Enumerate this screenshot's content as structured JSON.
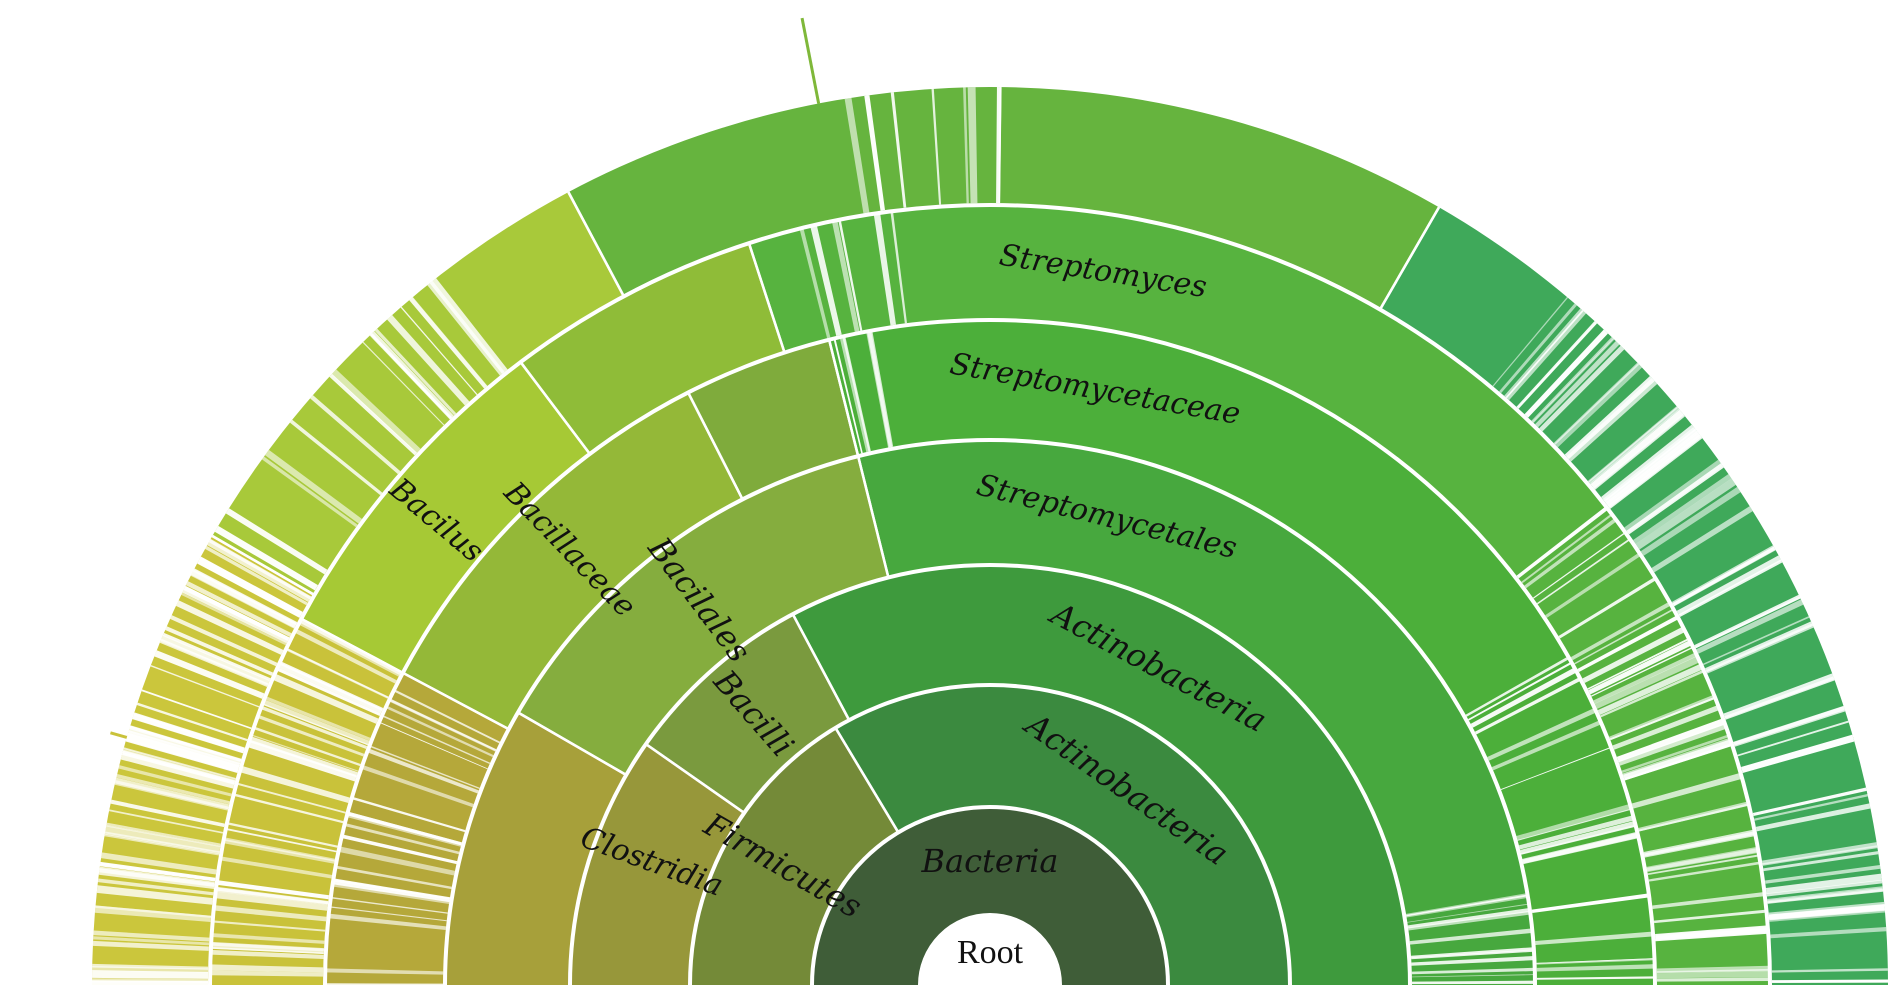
{
  "root": {
    "label": "Root",
    "children": [
      {
        "label": "Bacteria",
        "color": "#3f5d38",
        "children": [
          {
            "label": "Firmicutes",
            "color": "#748a38",
            "children": [
              {
                "label": "Clostridia",
                "color": "#97973a",
                "children": [
                  {
                    "label": "",
                    "color": "#a7a03a",
                    "children": [
                      {
                        "label": "",
                        "color": "#b5a83a",
                        "children": [
                          {
                            "label": "",
                            "color": "#c9c23a",
                            "children": []
                          }
                        ]
                      }
                    ]
                  }
                ]
              },
              {
                "label": "Bacilli",
                "color": "#7a9a3e",
                "children": [
                  {
                    "label": "Bacilales",
                    "color": "#85ad3e",
                    "children": [
                      {
                        "label": "Bacillaceae",
                        "color": "#94b838",
                        "children": [
                          {
                            "label": "Bacilus",
                            "color": "#a6c935",
                            "children": []
                          }
                        ]
                      }
                    ]
                  }
                ]
              }
            ]
          },
          {
            "label": "Actinobacteria",
            "color": "#3b8a3f",
            "children": [
              {
                "label": "Actinobacteria",
                "color": "#3e9a3d",
                "children": [
                  {
                    "label": "Streptomycetales",
                    "color": "#47a83e",
                    "children": [
                      {
                        "label": "Streptomycetaceae",
                        "color": "#4caf3a",
                        "children": [
                          {
                            "label": "Streptomyces",
                            "color": "#57b33f",
                            "children": []
                          }
                        ]
                      }
                    ]
                  }
                ]
              }
            ]
          }
        ]
      }
    ]
  }
}
